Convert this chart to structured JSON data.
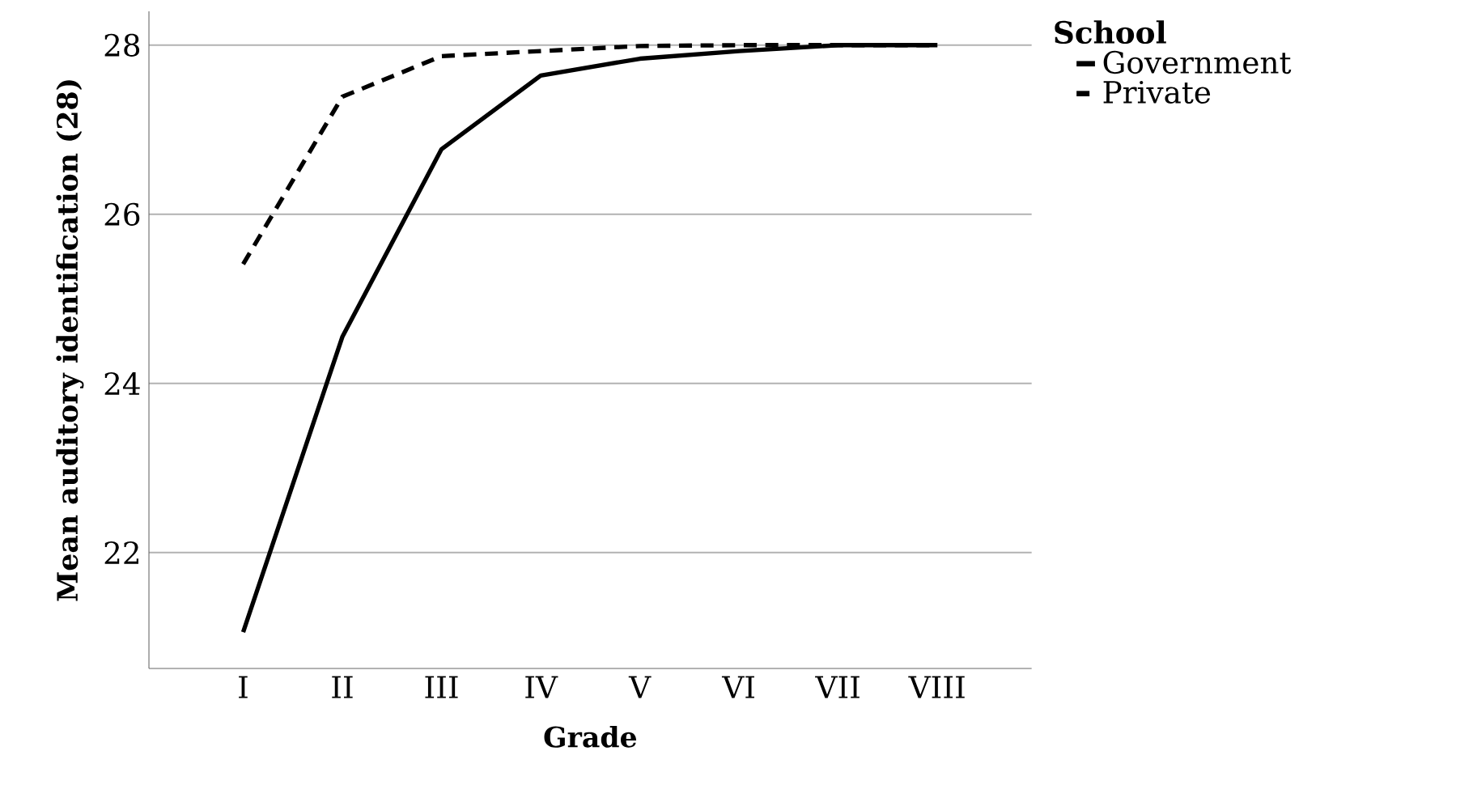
{
  "chart_data": {
    "type": "line",
    "xlabel": "Grade",
    "ylabel": "Mean auditory identification (28)",
    "legend_title": "School",
    "categories": [
      "I",
      "II",
      "III",
      "IV",
      "V",
      "VI",
      "VII",
      "VIII"
    ],
    "series": [
      {
        "name": "Government",
        "color": "#000000",
        "line_style": "solid",
        "values": [
          21.06,
          24.55,
          26.77,
          27.64,
          27.84,
          27.93,
          28.0,
          28.0
        ]
      },
      {
        "name": "Private",
        "color": "#000000",
        "line_style": "dashed",
        "values": [
          25.41,
          27.39,
          27.87,
          27.93,
          27.99,
          28.0,
          28.0,
          28.0
        ]
      }
    ],
    "ylim": [
      20.63,
      28.4
    ],
    "yticks": [
      22,
      24,
      26,
      28
    ],
    "grid": "y",
    "legend": "top right",
    "marker": "none"
  }
}
